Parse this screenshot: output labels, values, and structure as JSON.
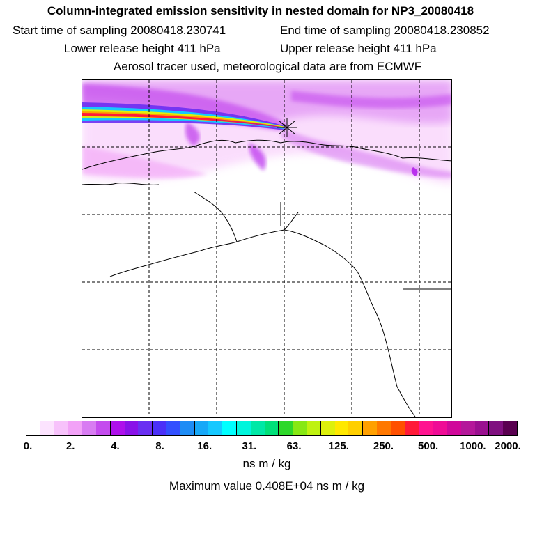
{
  "header": {
    "title": "Column-integrated emission sensitivity in nested domain for NP3_20080418",
    "start_time": "Start time of sampling 20080418.230741",
    "end_time": "End time of sampling 20080418.230852",
    "lower_release": "Lower release height  411 hPa",
    "upper_release": "Upper release height  411 hPa",
    "info": "Aerosol tracer used, meteorological data are from ECMWF"
  },
  "colorbar": {
    "colors": [
      "#ffffff",
      "#fce3fe",
      "#f7c2fb",
      "#f2a2f7",
      "#d87cf2",
      "#c44cee",
      "#ae10eb",
      "#8912e8",
      "#6a2ff2",
      "#4b30f8",
      "#3350ff",
      "#1e8cf5",
      "#17a8f8",
      "#16c8ff",
      "#00ffff",
      "#00f5dc",
      "#00e8a6",
      "#00e079",
      "#2ed82a",
      "#87e814",
      "#bff210",
      "#ddf00c",
      "#ffe800",
      "#ffcf00",
      "#ffa000",
      "#ff7800",
      "#ff5000",
      "#ff1a38",
      "#ff1490",
      "#ef0c96",
      "#d0089a",
      "#b4189a",
      "#9a1090",
      "#801080",
      "#5a0050"
    ],
    "tick_labels": [
      "0.",
      "2.",
      "4.",
      "8.",
      "16.",
      "31.",
      "63.",
      "125.",
      "250.",
      "500.",
      "1000.",
      "2000."
    ],
    "units": "ns m / kg"
  },
  "footer": {
    "max_value": "Maximum value  0.408E+04 ns m / kg"
  }
}
